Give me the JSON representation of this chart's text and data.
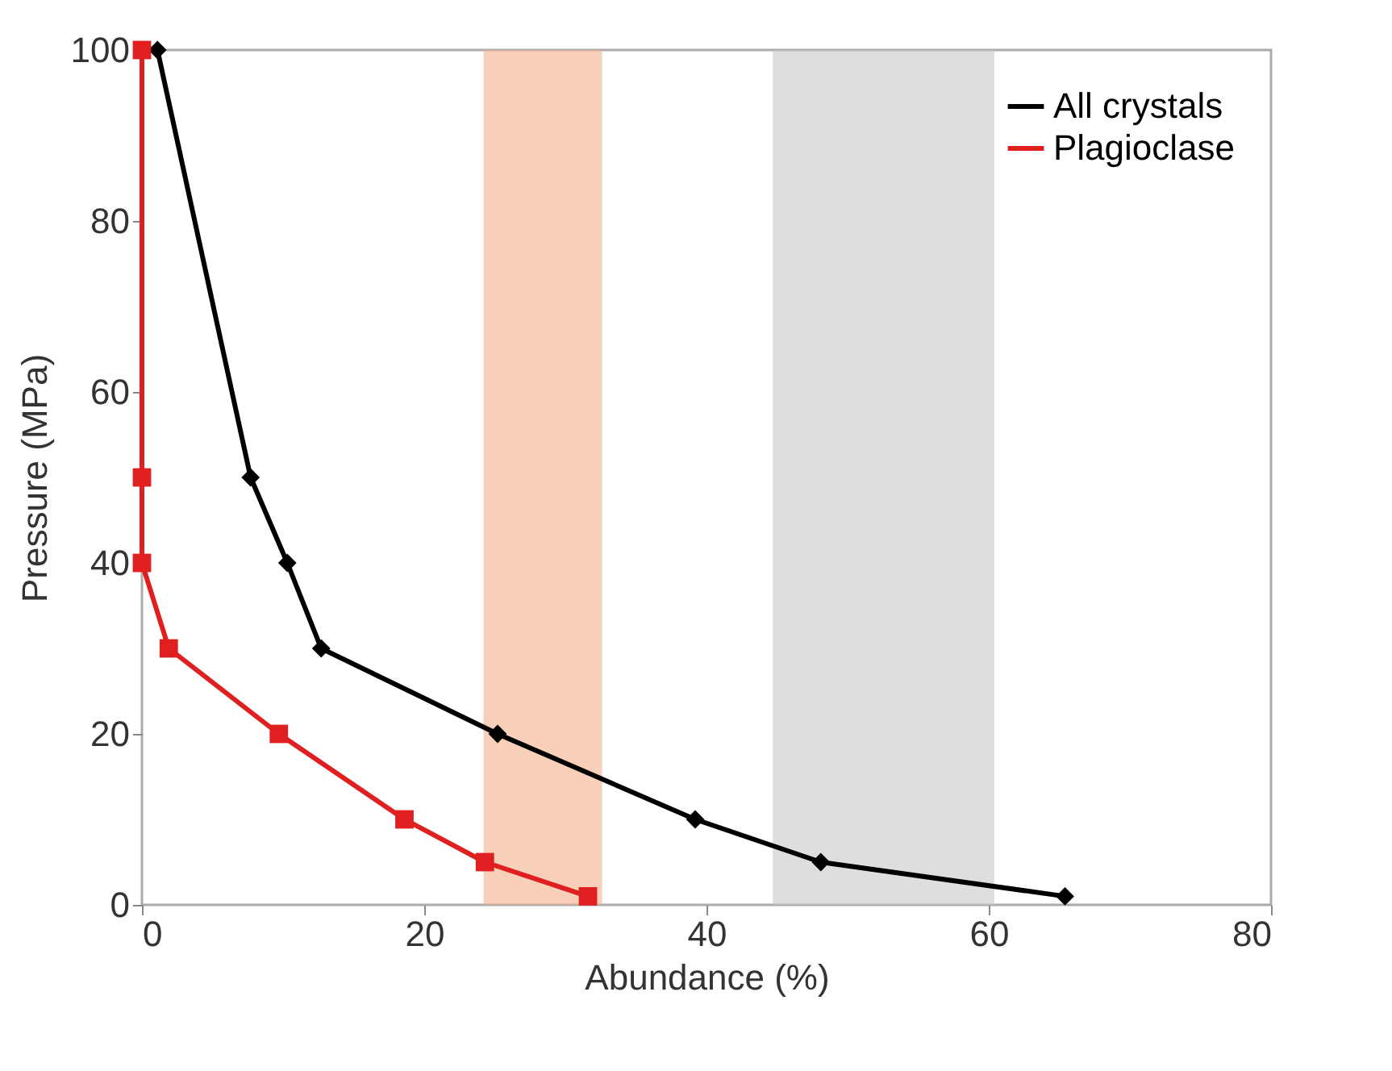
{
  "chart_data": {
    "type": "line",
    "xlabel": "Abundance (%)",
    "ylabel": "Pressure (MPa)",
    "xlim": [
      0,
      80
    ],
    "ylim": [
      0,
      100
    ],
    "xticks": [
      0,
      20,
      40,
      60,
      80
    ],
    "yticks": [
      0,
      20,
      40,
      60,
      80,
      100
    ],
    "grid": false,
    "legend": "top right",
    "line_style": "solid",
    "series": [
      {
        "name": "All crystals",
        "color": "#000000",
        "marker": "diamond",
        "x": [
          1.1,
          7.7,
          10.3,
          12.7,
          25.2,
          39.2,
          48.1,
          65.4
        ],
        "values": [
          100,
          50,
          40,
          30,
          20,
          10,
          5,
          1
        ]
      },
      {
        "name": "Plagioclase",
        "color": "#e02020",
        "marker": "square",
        "x": [
          0,
          0,
          0,
          1.9,
          9.7,
          18.6,
          24.3,
          31.6
        ],
        "values": [
          100,
          50,
          40,
          30,
          20,
          10,
          5,
          1
        ]
      }
    ],
    "bands": [
      {
        "axis": "x",
        "from": 24.2,
        "to": 32.6,
        "color": "#f4b08c"
      },
      {
        "axis": "x",
        "from": 44.7,
        "to": 60.4,
        "color": "#c8c8c8"
      }
    ]
  }
}
